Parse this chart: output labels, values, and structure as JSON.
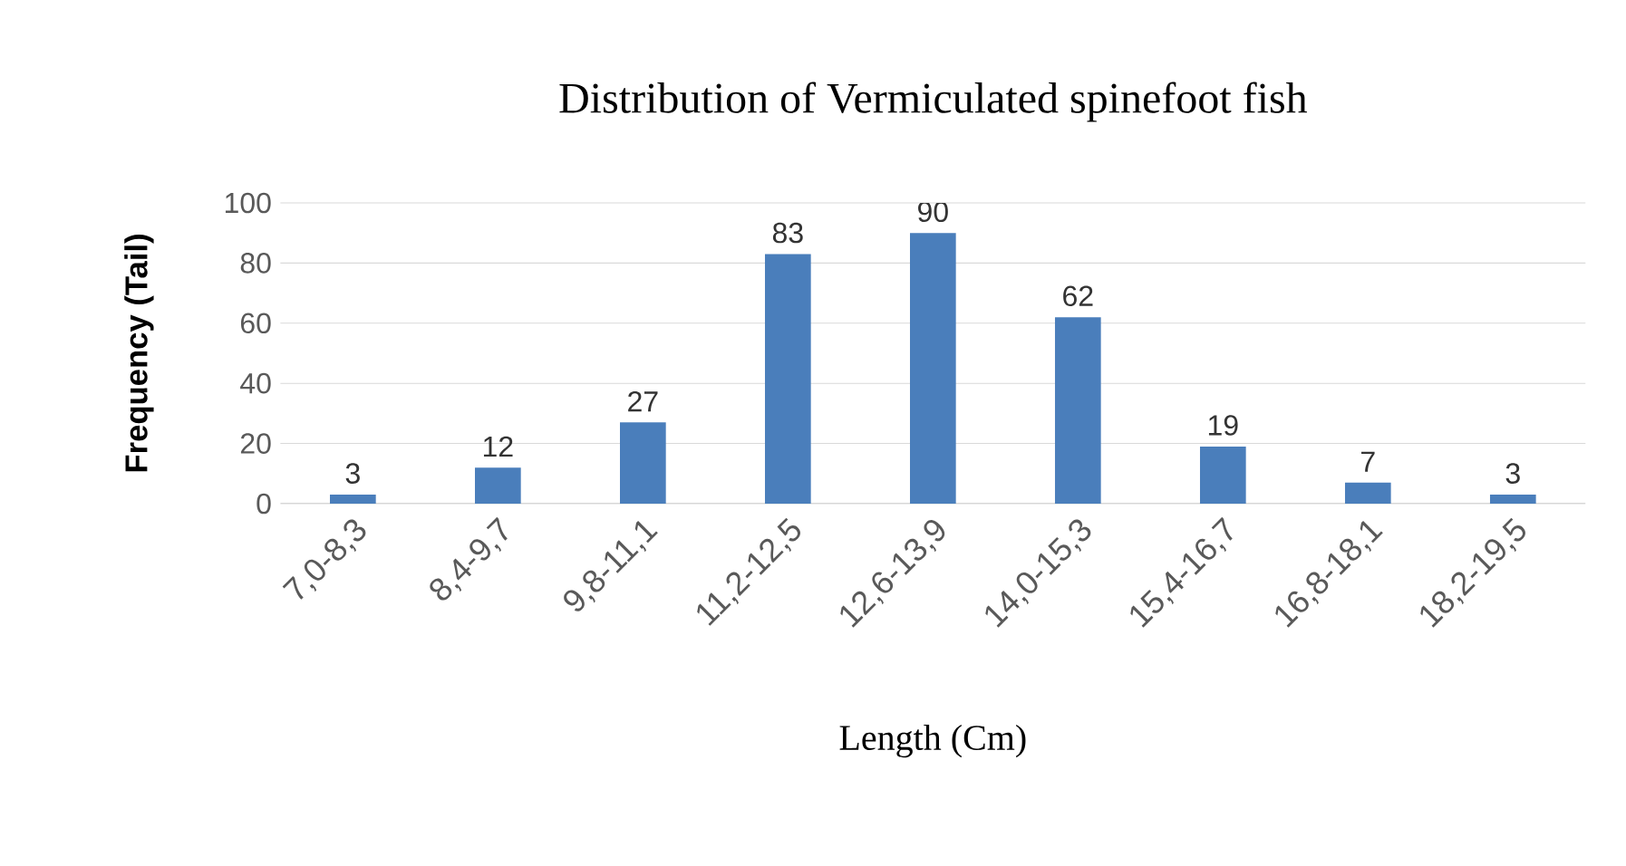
{
  "chart_data": {
    "type": "bar",
    "title": "Distribution of Vermiculated spinefoot fish",
    "xlabel": "Length (Cm)",
    "ylabel": "Frequency (Tail)",
    "categories": [
      "7,0-8,3",
      "8,4-9,7",
      "9,8-11,1",
      "11,2-12,5",
      "12,6-13,9",
      "14,0-15,3",
      "15,4-16,7",
      "16,8-18,1",
      "18,2-19,5"
    ],
    "values": [
      3,
      12,
      27,
      83,
      90,
      62,
      19,
      7,
      3
    ],
    "color": "#4a7ebb",
    "ylim": [
      0,
      100
    ],
    "yticks": [
      0,
      20,
      40,
      60,
      80,
      100
    ],
    "grid": "y",
    "data_labels": true
  }
}
